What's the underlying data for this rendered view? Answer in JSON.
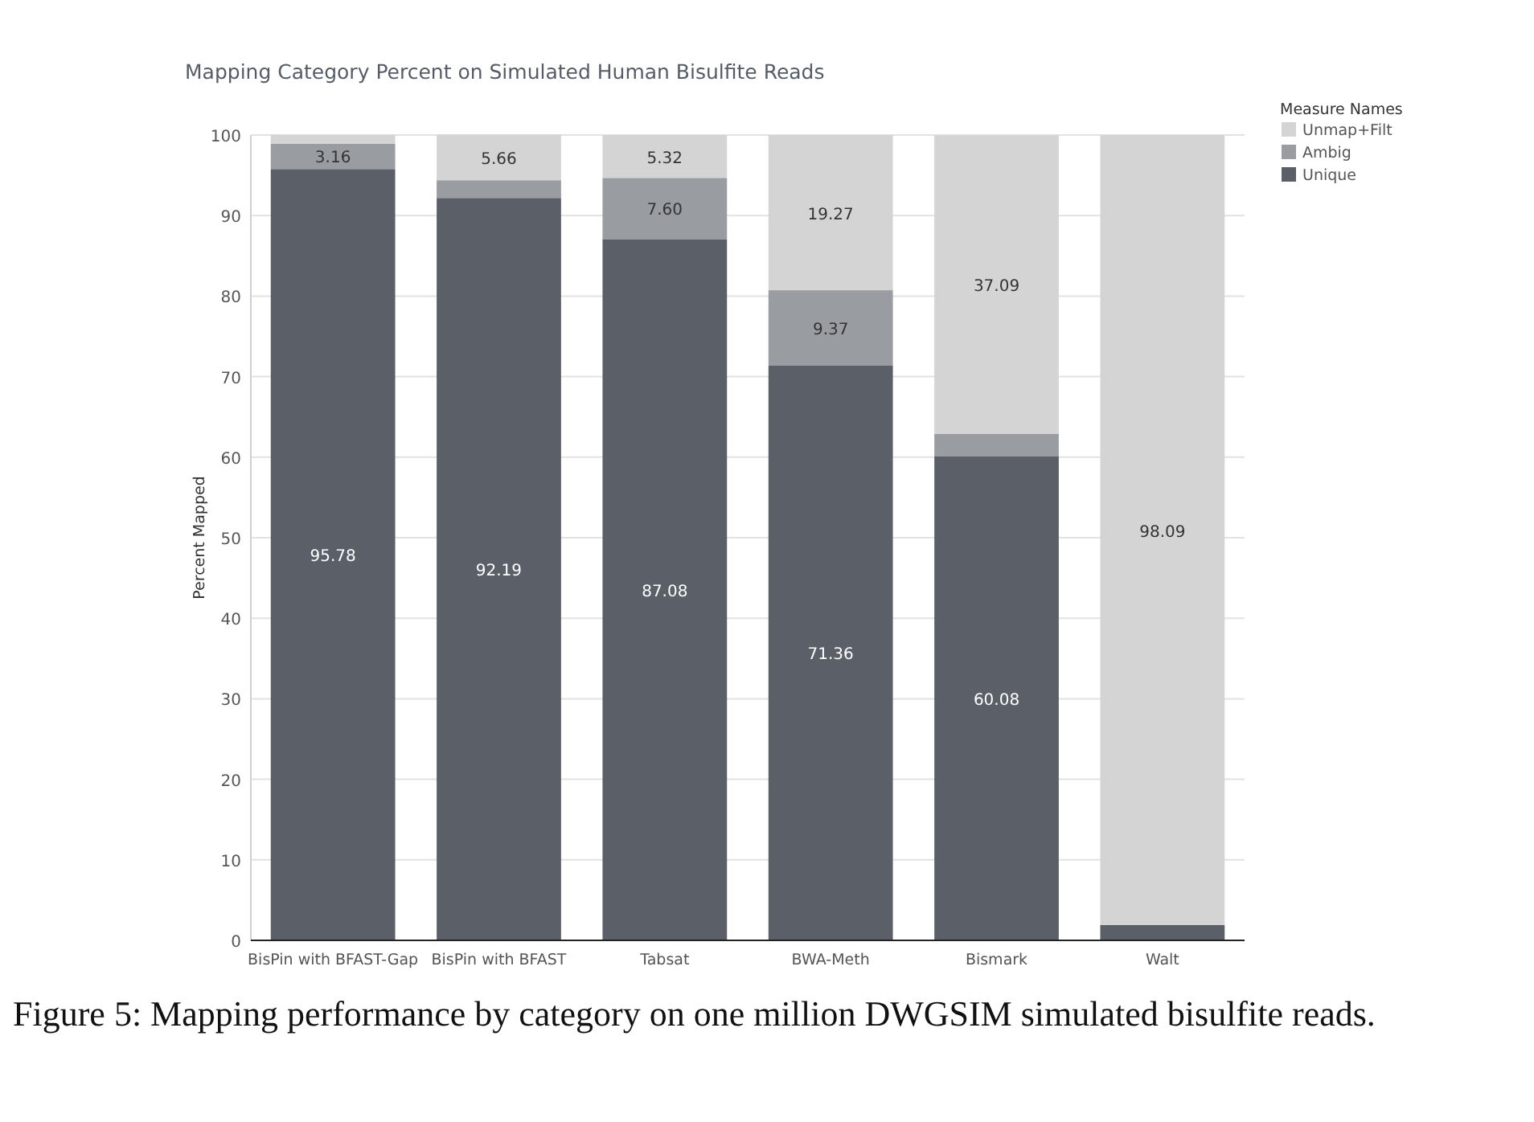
{
  "chart_data": {
    "type": "bar",
    "stacked": true,
    "title": "Mapping Category Percent on Simulated Human Bisulfite Reads",
    "ylabel": "Percent Mapped",
    "legend_title": "Measure Names",
    "legend": "top right",
    "grid": "y",
    "categories": [
      "BisPin with BFAST-Gap",
      "BisPin with BFAST",
      "Tabsat",
      "BWA-Meth",
      "Bismark",
      "Walt"
    ],
    "ylim": [
      0,
      100
    ],
    "yticks": [
      0,
      10,
      20,
      30,
      40,
      50,
      60,
      70,
      80,
      90,
      100
    ],
    "series": [
      {
        "name": "Unique",
        "color": "#5b5f67",
        "values": [
          95.78,
          92.19,
          87.08,
          71.36,
          60.08,
          1.9
        ],
        "value_labels": [
          "95.78",
          "92.19",
          "87.08",
          "71.36",
          "60.08",
          null
        ]
      },
      {
        "name": "Ambig",
        "color": "#999ca1",
        "values": [
          3.16,
          2.2,
          7.6,
          9.37,
          2.8,
          0
        ],
        "value_labels": [
          "3.16",
          null,
          "7.60",
          "9.37",
          null,
          null
        ]
      },
      {
        "name": "Unmap+Filt",
        "color": "#d4d4d4",
        "values": [
          1.1,
          5.66,
          5.32,
          19.27,
          37.09,
          98.09
        ],
        "value_labels": [
          null,
          "5.66",
          "5.32",
          "19.27",
          "37.09",
          "98.09"
        ]
      }
    ],
    "annotations": [
      "Figure 5: Mapping performance by category on one million DWGSIM simulated bisulfite reads."
    ]
  }
}
